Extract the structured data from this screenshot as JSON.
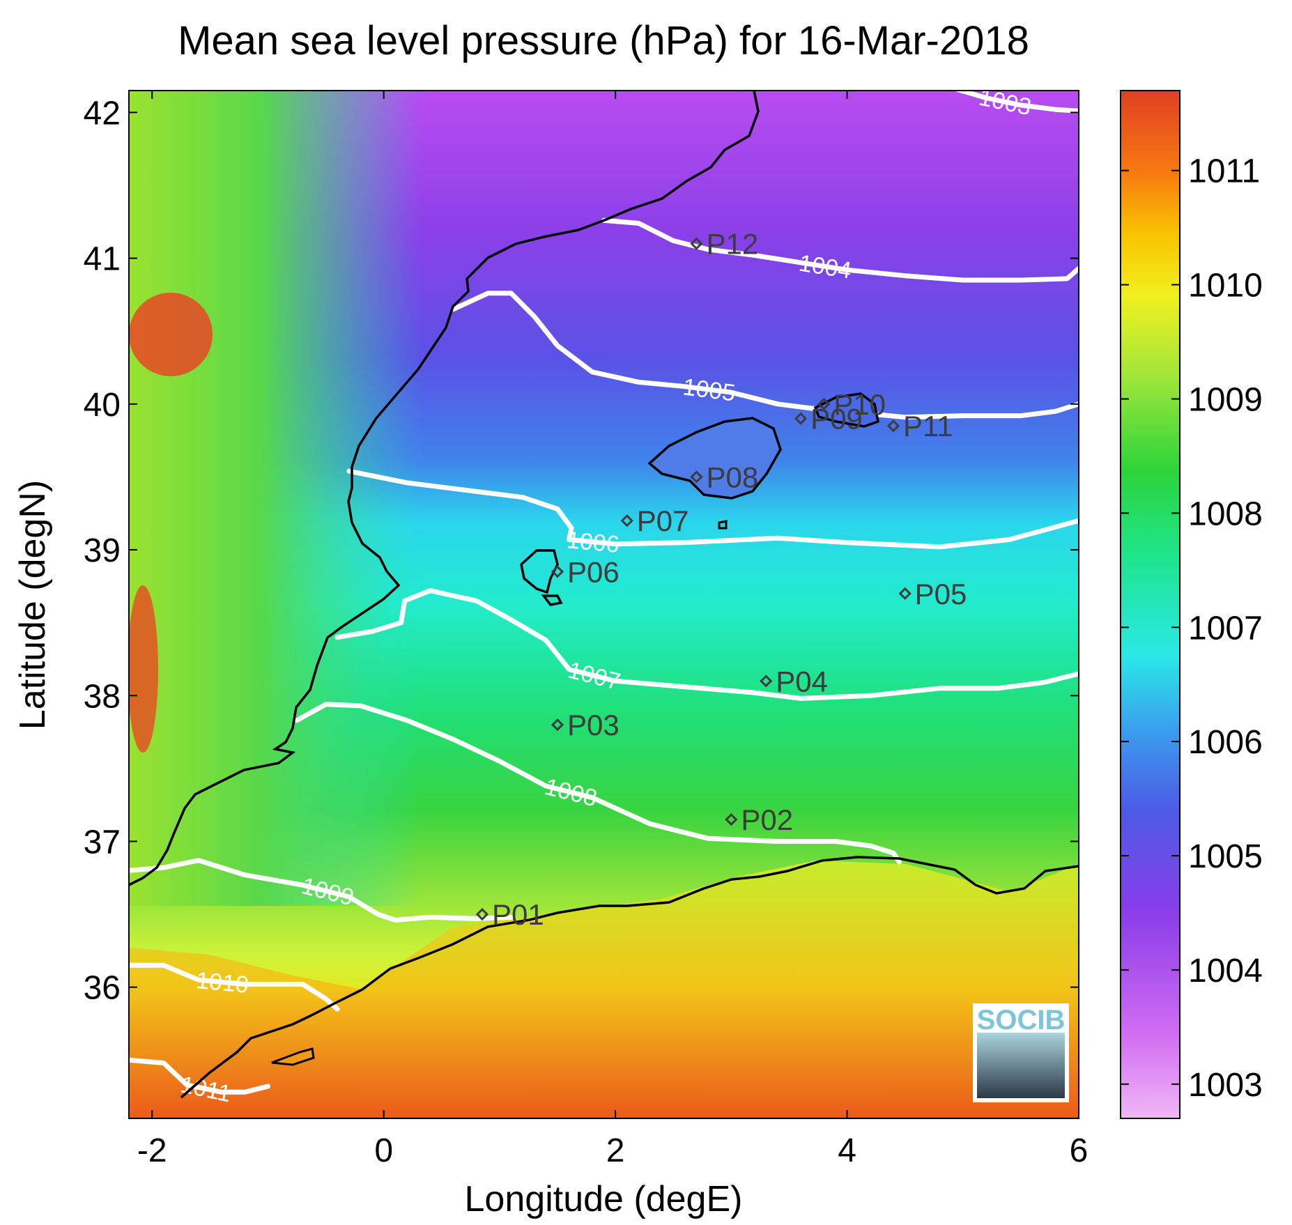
{
  "chart_data": {
    "type": "heatmap",
    "title": "Mean sea level pressure (hPa) for 16-Mar-2018",
    "xlabel": "Longitude (degE)",
    "ylabel": "Latitude (degN)",
    "xlim": [
      -2.2,
      6.0
    ],
    "ylim": [
      35.1,
      42.15
    ],
    "x_ticks": [
      -2,
      0,
      2,
      4,
      6
    ],
    "y_ticks": [
      36,
      37,
      38,
      39,
      40,
      41,
      42
    ],
    "colorbar": {
      "range": [
        1002.7,
        1011.7
      ],
      "ticks": [
        1003,
        1004,
        1005,
        1006,
        1007,
        1008,
        1009,
        1010,
        1011
      ]
    },
    "contours": [
      {
        "level": 1003,
        "label": "1003",
        "points": [
          [
            4.9,
            42.17
          ],
          [
            5.2,
            42.1
          ],
          [
            5.5,
            42.05
          ],
          [
            5.8,
            42.02
          ],
          [
            6.0,
            42.01
          ]
        ]
      },
      {
        "level": 1004,
        "label": "1004",
        "points": [
          [
            1.9,
            41.26
          ],
          [
            2.2,
            41.24
          ],
          [
            2.5,
            41.12
          ],
          [
            2.8,
            41.06
          ],
          [
            3.2,
            41.02
          ],
          [
            3.6,
            40.97
          ],
          [
            4.0,
            40.92
          ],
          [
            4.5,
            40.88
          ],
          [
            5.0,
            40.85
          ],
          [
            5.5,
            40.85
          ],
          [
            5.9,
            40.86
          ],
          [
            6.0,
            40.93
          ]
        ]
      },
      {
        "level": 1005,
        "label": "1005",
        "points": [
          [
            0.6,
            40.65
          ],
          [
            0.9,
            40.76
          ],
          [
            1.1,
            40.76
          ],
          [
            1.3,
            40.6
          ],
          [
            1.5,
            40.4
          ],
          [
            1.8,
            40.22
          ],
          [
            2.2,
            40.15
          ],
          [
            2.6,
            40.12
          ],
          [
            3.0,
            40.08
          ],
          [
            3.4,
            40.0
          ],
          [
            3.7,
            39.97
          ],
          [
            4.1,
            39.94
          ],
          [
            4.5,
            39.91
          ],
          [
            5.0,
            39.92
          ],
          [
            5.5,
            39.92
          ],
          [
            5.8,
            39.95
          ],
          [
            6.0,
            40.0
          ]
        ]
      },
      {
        "level": 1006,
        "label": "1006",
        "points": [
          [
            -0.3,
            39.54
          ],
          [
            0.2,
            39.46
          ],
          [
            0.8,
            39.4
          ],
          [
            1.2,
            39.36
          ],
          [
            1.5,
            39.28
          ],
          [
            1.62,
            39.15
          ],
          [
            1.6,
            39.07
          ],
          [
            2.0,
            39.04
          ],
          [
            2.6,
            39.05
          ],
          [
            3.4,
            39.08
          ],
          [
            4.0,
            39.05
          ],
          [
            4.8,
            39.02
          ],
          [
            5.4,
            39.07
          ],
          [
            6.0,
            39.2
          ]
        ]
      },
      {
        "level": 1007,
        "label": "1007",
        "points": [
          [
            -0.4,
            38.4
          ],
          [
            -0.1,
            38.44
          ],
          [
            0.15,
            38.5
          ],
          [
            0.18,
            38.65
          ],
          [
            0.4,
            38.72
          ],
          [
            0.8,
            38.65
          ],
          [
            1.1,
            38.52
          ],
          [
            1.4,
            38.38
          ],
          [
            1.6,
            38.18
          ],
          [
            2.0,
            38.1
          ],
          [
            2.6,
            38.06
          ],
          [
            3.2,
            38.02
          ],
          [
            3.6,
            37.98
          ],
          [
            4.2,
            38.0
          ],
          [
            4.8,
            38.05
          ],
          [
            5.3,
            38.05
          ],
          [
            5.7,
            38.09
          ],
          [
            6.0,
            38.15
          ]
        ]
      },
      {
        "level": 1008,
        "label": "1008",
        "points": [
          [
            -0.75,
            37.83
          ],
          [
            -0.5,
            37.94
          ],
          [
            -0.2,
            37.93
          ],
          [
            0.2,
            37.83
          ],
          [
            0.6,
            37.7
          ],
          [
            1.0,
            37.55
          ],
          [
            1.4,
            37.38
          ],
          [
            1.8,
            37.3
          ],
          [
            2.3,
            37.12
          ],
          [
            2.8,
            37.02
          ],
          [
            3.4,
            37.0
          ],
          [
            3.9,
            37.0
          ],
          [
            4.2,
            36.97
          ],
          [
            4.4,
            36.92
          ],
          [
            4.45,
            36.86
          ]
        ]
      },
      {
        "level": 1009,
        "label": "1009",
        "points": [
          [
            -2.2,
            36.8
          ],
          [
            -1.9,
            36.82
          ],
          [
            -1.6,
            36.87
          ],
          [
            -1.2,
            36.77
          ],
          [
            -0.7,
            36.7
          ],
          [
            -0.3,
            36.62
          ],
          [
            -0.05,
            36.5
          ],
          [
            0.1,
            36.46
          ],
          [
            0.4,
            36.48
          ],
          [
            0.8,
            36.47
          ],
          [
            1.1,
            36.48
          ]
        ]
      },
      {
        "level": 1010,
        "label": "1010",
        "points": [
          [
            -2.2,
            36.15
          ],
          [
            -1.9,
            36.15
          ],
          [
            -1.6,
            36.05
          ],
          [
            -1.2,
            36.02
          ],
          [
            -0.7,
            36.02
          ],
          [
            -0.5,
            35.92
          ],
          [
            -0.4,
            35.85
          ]
        ]
      },
      {
        "level": 1011,
        "label": "1011",
        "points": [
          [
            -2.2,
            35.5
          ],
          [
            -1.9,
            35.48
          ],
          [
            -1.7,
            35.33
          ],
          [
            -1.4,
            35.28
          ],
          [
            -1.2,
            35.28
          ],
          [
            -1.0,
            35.32
          ]
        ]
      }
    ],
    "stations": [
      {
        "name": "P01",
        "lon": 0.85,
        "lat": 36.5
      },
      {
        "name": "P02",
        "lon": 3.0,
        "lat": 37.15
      },
      {
        "name": "P03",
        "lon": 1.5,
        "lat": 37.8
      },
      {
        "name": "P04",
        "lon": 3.3,
        "lat": 38.1
      },
      {
        "name": "P05",
        "lon": 4.5,
        "lat": 38.7
      },
      {
        "name": "P06",
        "lon": 1.5,
        "lat": 38.85
      },
      {
        "name": "P07",
        "lon": 2.1,
        "lat": 39.2
      },
      {
        "name": "P08",
        "lon": 2.7,
        "lat": 39.5
      },
      {
        "name": "P09",
        "lon": 3.6,
        "lat": 39.9
      },
      {
        "name": "P10",
        "lon": 3.8,
        "lat": 40.0
      },
      {
        "name": "P11",
        "lon": 4.4,
        "lat": 39.85
      },
      {
        "name": "P12",
        "lon": 2.7,
        "lat": 41.1
      }
    ],
    "grid": false
  },
  "logo": {
    "text": "SOCIB"
  },
  "colors": {
    "coastline": "#000000",
    "contour": "#ffffff",
    "station": "#3c3c3c"
  }
}
